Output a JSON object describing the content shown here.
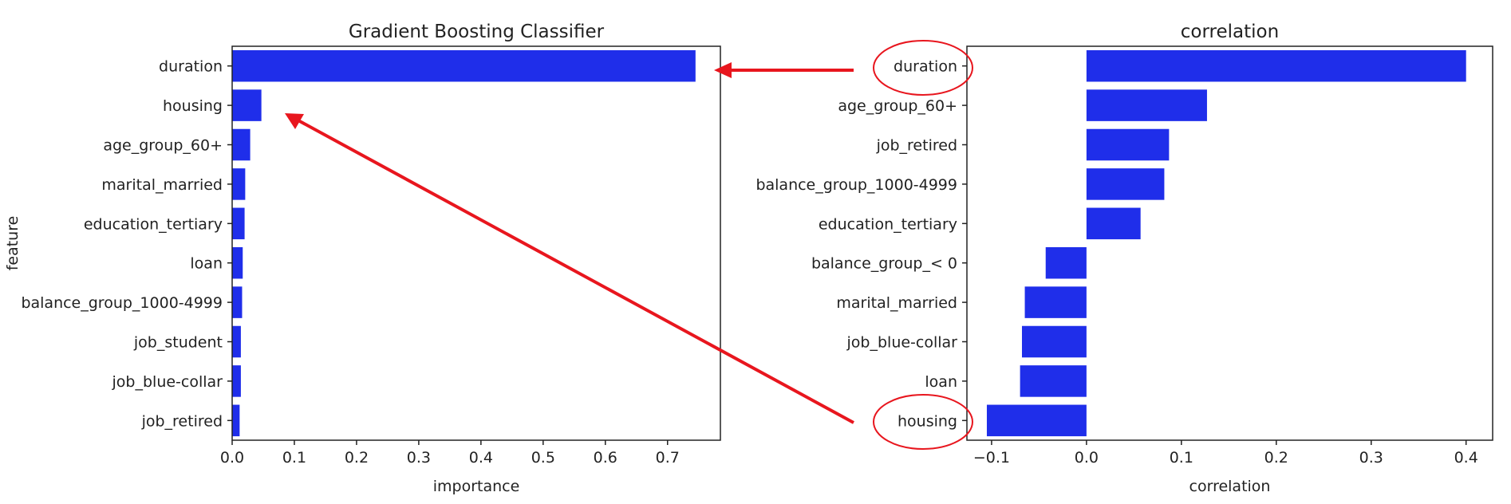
{
  "chart_data": [
    {
      "type": "bar",
      "orientation": "horizontal",
      "title": "Gradient Boosting Classifier",
      "xlabel": "importance",
      "ylabel": "feature",
      "categories": [
        "duration",
        "housing",
        "age_group_60+",
        "marital_married",
        "education_tertiary",
        "loan",
        "balance_group_1000-4999",
        "job_student",
        "job_blue-collar",
        "job_retired"
      ],
      "values": [
        0.745,
        0.047,
        0.029,
        0.021,
        0.02,
        0.017,
        0.016,
        0.014,
        0.014,
        0.012
      ],
      "xlim": [
        0,
        0.785
      ],
      "xticks": [
        0.0,
        0.1,
        0.2,
        0.3,
        0.4,
        0.5,
        0.6,
        0.7
      ],
      "xtick_labels": [
        "0.0",
        "0.1",
        "0.2",
        "0.3",
        "0.4",
        "0.5",
        "0.6",
        "0.7"
      ],
      "bar_color": "#1f2eea",
      "grid": false
    },
    {
      "type": "bar",
      "orientation": "horizontal",
      "title": "correlation",
      "xlabel": "correlation",
      "ylabel": "",
      "categories": [
        "duration",
        "age_group_60+",
        "job_retired",
        "balance_group_1000-4999",
        "education_tertiary",
        "balance_group_< 0",
        "marital_married",
        "job_blue-collar",
        "loan",
        "housing"
      ],
      "values": [
        0.4,
        0.127,
        0.087,
        0.082,
        0.057,
        -0.043,
        -0.065,
        -0.068,
        -0.07,
        -0.105
      ],
      "xlim": [
        -0.126,
        0.428
      ],
      "xticks": [
        -0.1,
        0.0,
        0.1,
        0.2,
        0.3,
        0.4
      ],
      "xtick_labels": [
        "−0.1",
        "0.0",
        "0.1",
        "0.2",
        "0.3",
        "0.4"
      ],
      "bar_color": "#1f2eea",
      "grid": false
    }
  ],
  "annotations": {
    "arrow_color": "#e8161e",
    "circled_labels": [
      "duration",
      "housing"
    ]
  }
}
